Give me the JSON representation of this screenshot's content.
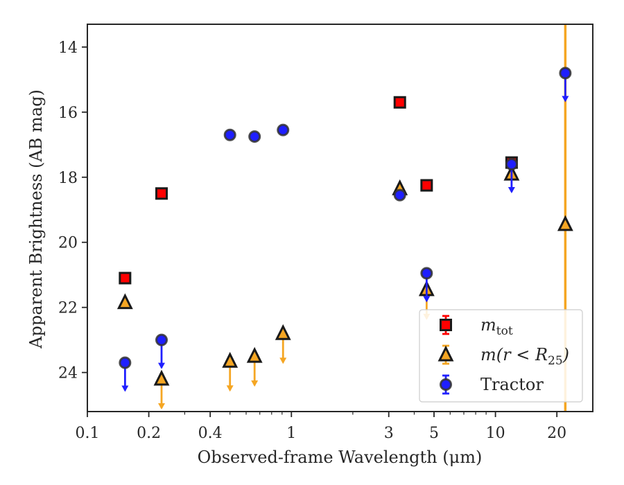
{
  "chart_data": {
    "type": "scatter",
    "title": "",
    "xlabel": "Observed-frame Wavelength (μm)",
    "ylabel": "Apparent Brightness (AB mag)",
    "xscale": "log",
    "xlim": [
      0.1,
      30
    ],
    "ylim": [
      25.2,
      13.3
    ],
    "y_inverted": true,
    "x_tick_labels": [
      "0.1",
      "0.2",
      "0.4",
      "1",
      "3",
      "5",
      "10",
      "20"
    ],
    "x_tick_values": [
      0.1,
      0.2,
      0.4,
      1,
      3,
      5,
      10,
      20
    ],
    "y_tick_labels": [
      "14",
      "16",
      "18",
      "20",
      "22",
      "24"
    ],
    "y_tick_values": [
      14,
      16,
      18,
      20,
      22,
      24
    ],
    "grid": false,
    "legend_position": "lower-right",
    "series": [
      {
        "name": "m_tot",
        "legend_main": "m",
        "legend_sub": "tot",
        "marker": "square",
        "color": "#ff0000",
        "edge_color": "#1a1a1a",
        "points": [
          {
            "x": 0.153,
            "y": 21.1
          },
          {
            "x": 0.231,
            "y": 18.5
          },
          {
            "x": 3.4,
            "y": 15.7
          },
          {
            "x": 4.6,
            "y": 18.25
          },
          {
            "x": 12.0,
            "y": 17.55
          }
        ]
      },
      {
        "name": "m(r < R_25)",
        "legend_main": "m(r < R",
        "legend_sub": "25",
        "legend_tail": ")",
        "marker": "triangle",
        "color": "#f5a623",
        "edge_color": "#1a1a1a",
        "points": [
          {
            "x": 0.153,
            "y": 21.85
          },
          {
            "x": 0.231,
            "y": 24.2,
            "upper_limit": true
          },
          {
            "x": 0.5,
            "y": 23.65,
            "upper_limit": true
          },
          {
            "x": 0.66,
            "y": 23.5,
            "upper_limit": true
          },
          {
            "x": 0.91,
            "y": 22.8,
            "upper_limit": true
          },
          {
            "x": 3.4,
            "y": 18.35
          },
          {
            "x": 4.6,
            "y": 21.45,
            "upper_limit": true
          },
          {
            "x": 12.0,
            "y": 17.9
          },
          {
            "x": 22.0,
            "y": 19.45,
            "full_error_bar": true
          }
        ]
      },
      {
        "name": "Tractor",
        "legend_main": "Tractor",
        "marker": "circle",
        "color": "#1f1fff",
        "edge_color": "#333333",
        "points": [
          {
            "x": 0.153,
            "y": 23.7,
            "upper_limit": true
          },
          {
            "x": 0.231,
            "y": 23.0,
            "upper_limit": true
          },
          {
            "x": 0.5,
            "y": 16.7
          },
          {
            "x": 0.66,
            "y": 16.75
          },
          {
            "x": 0.91,
            "y": 16.55
          },
          {
            "x": 3.4,
            "y": 18.55
          },
          {
            "x": 4.6,
            "y": 20.95,
            "upper_limit": true
          },
          {
            "x": 12.0,
            "y": 17.6,
            "upper_limit": true
          },
          {
            "x": 22.0,
            "y": 14.8,
            "upper_limit": true
          }
        ]
      }
    ]
  }
}
